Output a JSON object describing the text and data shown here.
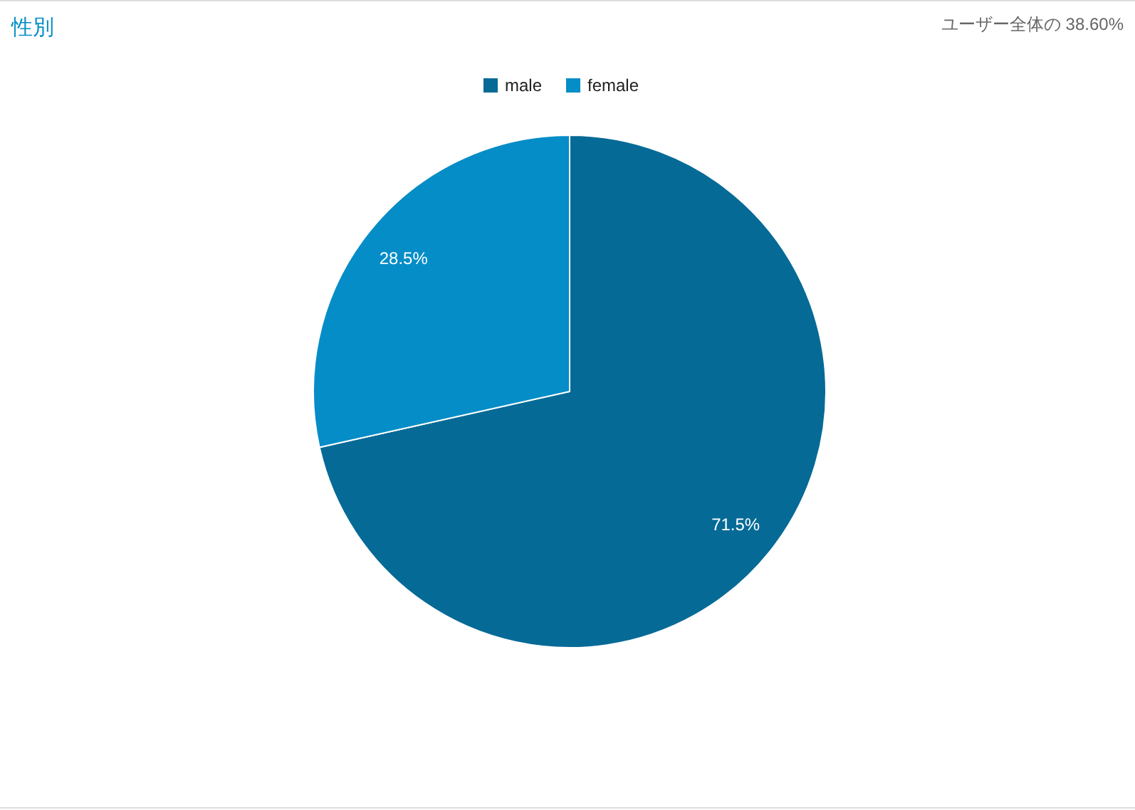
{
  "chart_data": {
    "type": "pie",
    "title": "性別",
    "annotations": [
      "ユーザー全体の 38.60%"
    ],
    "categories": [
      "male",
      "female"
    ],
    "values": [
      71.5,
      28.5
    ],
    "colors": [
      "#066a96",
      "#058dc7"
    ],
    "value_labels": [
      "71.5%",
      "28.5%"
    ],
    "legend": "top"
  }
}
